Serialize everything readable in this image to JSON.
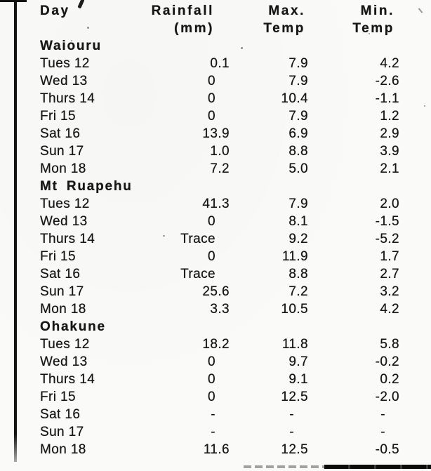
{
  "colors": {
    "ink": "#161616",
    "paper": "#fafaf8"
  },
  "table": {
    "columns": [
      {
        "line1": "Day",
        "line2": ""
      },
      {
        "line1": "Rainfall",
        "line2": "(mm)"
      },
      {
        "line1": "Max.",
        "line2": "Temp"
      },
      {
        "line1": "Min.",
        "line2": "Temp"
      }
    ],
    "sections": [
      {
        "name": "Waiouru",
        "rows": [
          {
            "day": "Tues 12",
            "rainfall": "0.1",
            "max_temp": "7.9",
            "min_temp": "4.2"
          },
          {
            "day": "Wed 13",
            "rainfall": "0",
            "max_temp": "7.9",
            "min_temp": "-2.6"
          },
          {
            "day": "Thurs 14",
            "rainfall": "0",
            "max_temp": "10.4",
            "min_temp": "-1.1"
          },
          {
            "day": "Fri 15",
            "rainfall": "0",
            "max_temp": "7.9",
            "min_temp": "1.2"
          },
          {
            "day": "Sat 16",
            "rainfall": "13.9",
            "max_temp": "6.9",
            "min_temp": "2.9"
          },
          {
            "day": "Sun 17",
            "rainfall": "1.0",
            "max_temp": "8.8",
            "min_temp": "3.9"
          },
          {
            "day": "Mon 18",
            "rainfall": "7.2",
            "max_temp": "5.0",
            "min_temp": "2.1"
          }
        ]
      },
      {
        "name": "Mt Ruapehu",
        "rows": [
          {
            "day": "Tues 12",
            "rainfall": "41.3",
            "max_temp": "7.9",
            "min_temp": "2.0"
          },
          {
            "day": "Wed 13",
            "rainfall": "0",
            "max_temp": "8.1",
            "min_temp": "-1.5"
          },
          {
            "day": "Thurs 14",
            "rainfall": "Trace",
            "max_temp": "9.2",
            "min_temp": "-5.2"
          },
          {
            "day": "Fri 15",
            "rainfall": "0",
            "max_temp": "11.9",
            "min_temp": "1.7"
          },
          {
            "day": "Sat 16",
            "rainfall": "Trace",
            "max_temp": "8.8",
            "min_temp": "2.7"
          },
          {
            "day": "Sun 17",
            "rainfall": "25.6",
            "max_temp": "7.2",
            "min_temp": "3.2"
          },
          {
            "day": "Mon 18",
            "rainfall": "3.3",
            "max_temp": "10.5",
            "min_temp": "4.2"
          }
        ]
      },
      {
        "name": "Ohakune",
        "rows": [
          {
            "day": "Tues 12",
            "rainfall": "18.2",
            "max_temp": "11.8",
            "min_temp": "5.8"
          },
          {
            "day": "Wed 13",
            "rainfall": "0",
            "max_temp": "9.7",
            "min_temp": "-0.2"
          },
          {
            "day": "Thurs 14",
            "rainfall": "0",
            "max_temp": "9.1",
            "min_temp": "0.2"
          },
          {
            "day": "Fri 15",
            "rainfall": "0",
            "max_temp": "12.5",
            "min_temp": "-2.0"
          },
          {
            "day": "Sat 16",
            "rainfall": "-",
            "max_temp": "-",
            "min_temp": "-"
          },
          {
            "day": "Sun 17",
            "rainfall": "-",
            "max_temp": "-",
            "min_temp": "-"
          },
          {
            "day": "Mon 18",
            "rainfall": "11.6",
            "max_temp": "12.5",
            "min_temp": "-0.5"
          }
        ]
      }
    ]
  }
}
